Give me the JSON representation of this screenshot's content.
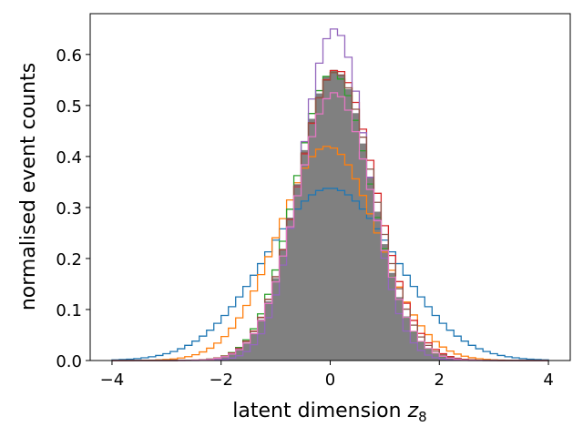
{
  "chart_data": {
    "type": "histogram",
    "xlabel": "latent dimension ",
    "xlabel_math": "z",
    "xlabel_sub": "8",
    "ylabel": "normalised event counts",
    "xlim": [
      -4.4,
      4.4
    ],
    "ylim": [
      0,
      0.68
    ],
    "x_ticks": [
      -4,
      -2,
      0,
      2,
      4
    ],
    "x_tick_labels": [
      "−4",
      "−2",
      "0",
      "2",
      "4"
    ],
    "y_ticks": [
      0.0,
      0.1,
      0.2,
      0.3,
      0.4,
      0.5,
      0.6
    ],
    "y_tick_labels": [
      "0.0",
      "0.1",
      "0.2",
      "0.3",
      "0.4",
      "0.5",
      "0.6"
    ],
    "bin_range": [
      -4,
      4
    ],
    "bin_count": 60,
    "grid": false,
    "series": [
      {
        "color": "#1f77b4",
        "style": "step",
        "shape": "gauss",
        "peak": 0.338,
        "mu": 0.0,
        "sigma": 1.18
      },
      {
        "color": "#ff7f0e",
        "style": "step",
        "shape": "gauss",
        "peak": 0.42,
        "mu": -0.05,
        "sigma": 0.9
      },
      {
        "color": "#2ca02c",
        "style": "step",
        "shape": "gauss",
        "peak": 0.565,
        "mu": 0.05,
        "sigma": 0.69
      },
      {
        "color": "#d62728",
        "style": "step",
        "shape": "gauss",
        "peak": 0.57,
        "mu": 0.12,
        "sigma": 0.71
      },
      {
        "color": "#9467bd",
        "style": "step",
        "shape": "gauss",
        "peak": 0.65,
        "mu": 0.08,
        "sigma": 0.6
      },
      {
        "color": "#8c564b",
        "style": "step",
        "shape": "gauss",
        "peak": 0.565,
        "mu": 0.1,
        "sigma": 0.7
      },
      {
        "color": "#e377c2",
        "style": "step",
        "shape": "gauss",
        "peak": 0.525,
        "mu": 0.08,
        "sigma": 0.69
      },
      {
        "color": "#808080",
        "style": "filled",
        "shape": "gauss",
        "peak": 0.57,
        "mu": 0.08,
        "sigma": 0.68
      }
    ]
  }
}
